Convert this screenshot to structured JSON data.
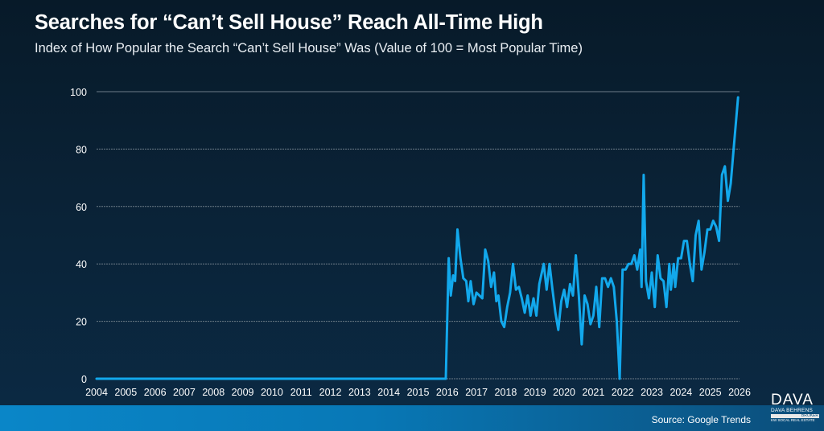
{
  "header": {
    "title": "Searches for “Can’t Sell House” Reach All-Time High",
    "subtitle": "Index of How Popular the Search “Can’t Sell House” Was (Value of 100 = Most Popular Time)"
  },
  "footer": {
    "source": "Source: Google Trends",
    "logo": {
      "mark": "DAVA",
      "name": "DAVA BEHRENS",
      "badge": "BROKER",
      "tagline": "KW SOCAL REAL ESTATE"
    }
  },
  "colors": {
    "line": "#12a8ec",
    "grid": "#6e7c88",
    "text": "#ffffff"
  },
  "chart_data": {
    "type": "line",
    "title": "Searches for “Can’t Sell House” Reach All-Time High",
    "subtitle": "Index of How Popular the Search “Can’t Sell House” Was (Value of 100 = Most Popular Time)",
    "xlabel": "",
    "ylabel": "",
    "ylim": [
      0,
      100
    ],
    "xlim": [
      2004,
      2026
    ],
    "yticks": [
      0,
      20,
      40,
      60,
      80,
      100
    ],
    "xticks": [
      "2004",
      "2005",
      "2006",
      "2007",
      "2008",
      "2009",
      "2010",
      "2011",
      "2012",
      "2013",
      "2014",
      "2015",
      "2016",
      "2017",
      "2018",
      "2019",
      "2020",
      "2021",
      "2022",
      "2023",
      "2024",
      "2025",
      "2026"
    ],
    "grid": true,
    "legend": "none",
    "series": [
      {
        "name": "Can't Sell House search interest",
        "points": [
          [
            2004.0,
            0
          ],
          [
            2015.95,
            0
          ],
          [
            2016.05,
            42
          ],
          [
            2016.12,
            29
          ],
          [
            2016.2,
            36
          ],
          [
            2016.27,
            34
          ],
          [
            2016.35,
            52
          ],
          [
            2016.45,
            42
          ],
          [
            2016.55,
            35
          ],
          [
            2016.65,
            34
          ],
          [
            2016.72,
            27
          ],
          [
            2016.8,
            34
          ],
          [
            2016.9,
            26
          ],
          [
            2017.0,
            30
          ],
          [
            2017.1,
            29
          ],
          [
            2017.2,
            28
          ],
          [
            2017.3,
            45
          ],
          [
            2017.4,
            41
          ],
          [
            2017.5,
            32
          ],
          [
            2017.6,
            37
          ],
          [
            2017.68,
            27
          ],
          [
            2017.75,
            29
          ],
          [
            2017.85,
            20
          ],
          [
            2017.95,
            18
          ],
          [
            2018.05,
            25
          ],
          [
            2018.15,
            30
          ],
          [
            2018.25,
            40
          ],
          [
            2018.35,
            31
          ],
          [
            2018.45,
            32
          ],
          [
            2018.55,
            28
          ],
          [
            2018.65,
            23
          ],
          [
            2018.75,
            29
          ],
          [
            2018.85,
            22
          ],
          [
            2018.95,
            28
          ],
          [
            2019.05,
            22
          ],
          [
            2019.15,
            33
          ],
          [
            2019.3,
            40
          ],
          [
            2019.4,
            31
          ],
          [
            2019.5,
            40
          ],
          [
            2019.6,
            31
          ],
          [
            2019.7,
            23
          ],
          [
            2019.8,
            17
          ],
          [
            2019.9,
            27
          ],
          [
            2020.0,
            31
          ],
          [
            2020.1,
            25
          ],
          [
            2020.2,
            33
          ],
          [
            2020.3,
            29
          ],
          [
            2020.4,
            43
          ],
          [
            2020.5,
            29
          ],
          [
            2020.6,
            12
          ],
          [
            2020.7,
            29
          ],
          [
            2020.8,
            26
          ],
          [
            2020.9,
            19
          ],
          [
            2021.0,
            22
          ],
          [
            2021.1,
            32
          ],
          [
            2021.2,
            18
          ],
          [
            2021.3,
            35
          ],
          [
            2021.4,
            35
          ],
          [
            2021.5,
            32
          ],
          [
            2021.6,
            35
          ],
          [
            2021.7,
            32
          ],
          [
            2021.8,
            20
          ],
          [
            2021.9,
            0
          ],
          [
            2022.0,
            38
          ],
          [
            2022.1,
            38
          ],
          [
            2022.2,
            40
          ],
          [
            2022.3,
            40
          ],
          [
            2022.4,
            43
          ],
          [
            2022.5,
            38
          ],
          [
            2022.6,
            45
          ],
          [
            2022.65,
            32
          ],
          [
            2022.72,
            71
          ],
          [
            2022.8,
            34
          ],
          [
            2022.9,
            28
          ],
          [
            2023.0,
            37
          ],
          [
            2023.1,
            25
          ],
          [
            2023.2,
            43
          ],
          [
            2023.3,
            35
          ],
          [
            2023.4,
            34
          ],
          [
            2023.5,
            25
          ],
          [
            2023.6,
            40
          ],
          [
            2023.65,
            31
          ],
          [
            2023.75,
            40
          ],
          [
            2023.8,
            32
          ],
          [
            2023.9,
            42
          ],
          [
            2024.0,
            42
          ],
          [
            2024.1,
            48
          ],
          [
            2024.2,
            48
          ],
          [
            2024.3,
            40
          ],
          [
            2024.4,
            34
          ],
          [
            2024.5,
            50
          ],
          [
            2024.6,
            55
          ],
          [
            2024.7,
            38
          ],
          [
            2024.8,
            44
          ],
          [
            2024.9,
            52
          ],
          [
            2025.0,
            52
          ],
          [
            2025.1,
            55
          ],
          [
            2025.2,
            53
          ],
          [
            2025.3,
            48
          ],
          [
            2025.4,
            71
          ],
          [
            2025.5,
            74
          ],
          [
            2025.6,
            62
          ],
          [
            2025.7,
            68
          ],
          [
            2025.8,
            80
          ],
          [
            2025.95,
            98
          ]
        ]
      }
    ]
  }
}
